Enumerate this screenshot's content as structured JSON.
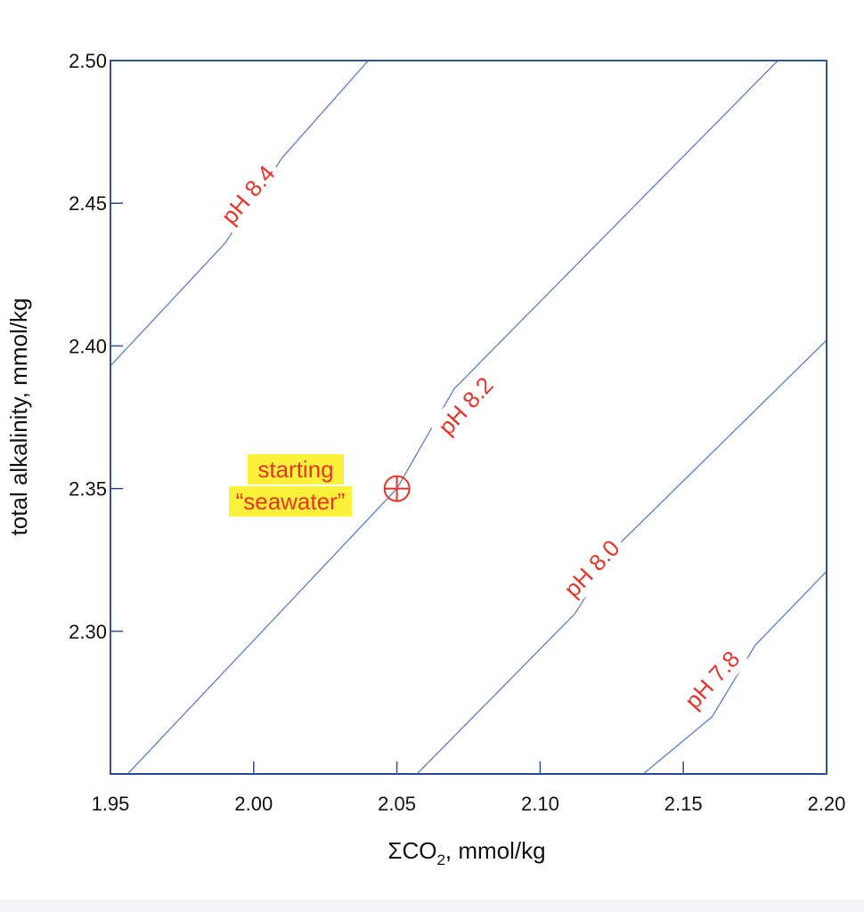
{
  "chart_data": {
    "type": "line",
    "title": "",
    "xlabel_prefix": "ΣCO",
    "xlabel_sub": "2",
    "xlabel_suffix": ", mmol/kg",
    "ylabel": "total alkalinity, mmol/kg",
    "xlim": [
      1.95,
      2.2
    ],
    "ylim": [
      2.25,
      2.5
    ],
    "x_ticks": [
      "1.95",
      "2.00",
      "2.05",
      "2.10",
      "2.15",
      "2.20"
    ],
    "y_ticks": [
      "2.30",
      "2.35",
      "2.40",
      "2.45",
      "2.50"
    ],
    "grid": false,
    "series": [
      {
        "name": "pH 8.4",
        "label": "pH 8.4",
        "x": [
          1.95,
          1.99,
          2.01,
          2.04
        ],
        "y": [
          2.393,
          2.436,
          2.466,
          2.5
        ],
        "label_at": [
          1.998,
          2.453
        ]
      },
      {
        "name": "pH 8.2",
        "label": "pH 8.2",
        "x": [
          1.956,
          2.05,
          2.07,
          2.183
        ],
        "y": [
          2.25,
          2.35,
          2.385,
          2.5
        ],
        "label_at": [
          2.074,
          2.379
        ]
      },
      {
        "name": "pH 8.0",
        "label": "pH 8.0",
        "x": [
          2.057,
          2.112,
          2.128,
          2.2
        ],
        "y": [
          2.25,
          2.306,
          2.331,
          2.402
        ],
        "label_at": [
          2.118,
          2.322
        ]
      },
      {
        "name": "pH 7.8",
        "label": "pH 7.8",
        "x": [
          2.136,
          2.16,
          2.175,
          2.2
        ],
        "y": [
          2.25,
          2.27,
          2.295,
          2.321
        ],
        "label_at": [
          2.16,
          2.283
        ]
      }
    ],
    "annotations": [
      {
        "text_line1": "starting",
        "text_line2": "“seawater”",
        "point": [
          2.05,
          2.35
        ],
        "color": "#e8352a",
        "highlight": "#fbf13a"
      }
    ],
    "colors": {
      "axis": "#2f4f96",
      "line": "#5b7fc7",
      "label": "#e8352a",
      "highlight": "#fbf13a"
    }
  }
}
